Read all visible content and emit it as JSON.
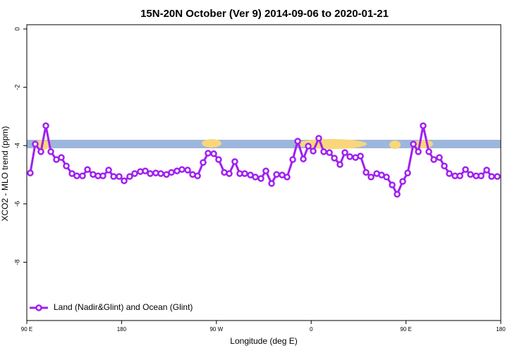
{
  "chart_data": {
    "type": "line",
    "title": "15N-20N October (Ver 9)   2014-09-06 to 2020-01-21",
    "x_label": "Longitude (deg E)",
    "y_label": "XCO2 - MLO trend (ppm)",
    "xlim": [
      90,
      540
    ],
    "ylim": [
      -10,
      0
    ],
    "xticks": [
      {
        "value": 90,
        "label": "90 E"
      },
      180,
      {
        "value": 270,
        "label": "90 W"
      },
      {
        "value": 360,
        "label": "0"
      },
      {
        "value": 450,
        "label": "90 E"
      },
      {
        "value": 540,
        "label": "180"
      }
    ],
    "yticks": [
      0,
      -2,
      -4,
      -6,
      -8
    ],
    "legend": "bottom-left",
    "series": [
      {
        "name": "Land (Nadir&Glint) and Ocean (Glint)",
        "color": "#a020f0",
        "x": [
          93.3,
          98.0,
          103.4,
          108.1,
          112.8,
          118.1,
          122.8,
          127.5,
          132.9,
          137.5,
          142.9,
          147.6,
          152.9,
          157.6,
          162.3,
          167.7,
          172.4,
          177.7,
          182.4,
          187.7,
          192.4,
          197.8,
          202.5,
          207.2,
          212.5,
          217.2,
          222.6,
          227.3,
          232.6,
          237.3,
          242.7,
          247.4,
          252.1,
          257.4,
          262.1,
          267.5,
          272.1,
          277.5,
          282.2,
          287.5,
          292.2,
          296.9,
          302.3,
          307.0,
          312.3,
          317.0,
          322.4,
          327.1,
          332.4,
          337.1,
          342.5,
          347.2,
          352.5,
          357.2,
          361.9,
          367.2,
          371.9,
          377.3,
          382.0,
          387.3,
          392.0,
          396.7,
          402.1,
          406.8,
          412.1,
          416.8,
          422.2,
          426.8,
          431.5,
          436.9,
          441.6,
          446.9,
          451.6,
          457.0,
          461.7,
          466.3,
          471.7,
          476.4,
          481.7,
          486.4,
          491.1,
          496.5,
          501.2,
          506.5,
          511.2,
          516.6,
          521.3,
          526.6,
          531.3,
          536.7
        ],
        "values": [
          -4.94,
          -3.95,
          -4.21,
          -3.32,
          -4.21,
          -4.48,
          -4.41,
          -4.7,
          -4.96,
          -5.04,
          -5.04,
          -4.82,
          -4.99,
          -5.04,
          -5.04,
          -4.84,
          -5.06,
          -5.06,
          -5.21,
          -5.06,
          -4.96,
          -4.89,
          -4.87,
          -4.96,
          -4.94,
          -4.96,
          -4.99,
          -4.92,
          -4.87,
          -4.82,
          -4.84,
          -4.99,
          -5.04,
          -4.58,
          -4.26,
          -4.28,
          -4.48,
          -4.92,
          -4.96,
          -4.55,
          -4.96,
          -4.96,
          -5.01,
          -5.08,
          -5.13,
          -4.87,
          -5.3,
          -4.99,
          -5.01,
          -5.08,
          -4.48,
          -3.85,
          -4.46,
          -4.02,
          -4.19,
          -3.75,
          -4.21,
          -4.24,
          -4.43,
          -4.65,
          -4.24,
          -4.38,
          -4.41,
          -4.36,
          -4.92,
          -5.08,
          -4.96,
          -5.01,
          -5.08,
          -5.35,
          -5.67,
          -5.23,
          -4.94,
          -3.95,
          -4.21,
          -3.32,
          -4.21,
          -4.48,
          -4.41,
          -4.7,
          -4.96,
          -5.04,
          -5.04,
          -4.82,
          -4.99,
          -5.04,
          -5.04,
          -4.84,
          -5.06,
          -5.06
        ]
      }
    ]
  }
}
